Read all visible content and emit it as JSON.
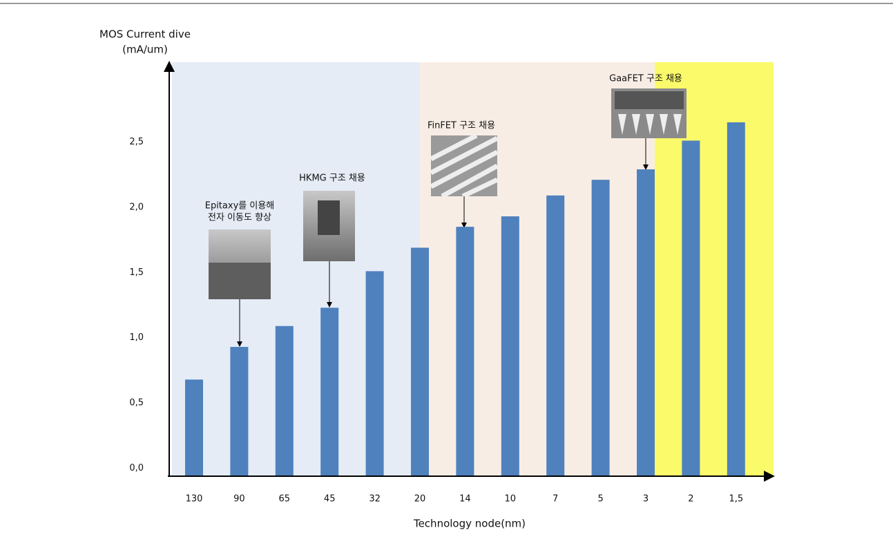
{
  "chart_data": {
    "type": "bar",
    "y_label_lines": [
      "MOS Current dive",
      "(mA/um)"
    ],
    "x_label": "Technology node(nm)",
    "categories": [
      "130",
      "90",
      "65",
      "45",
      "32",
      "20",
      "14",
      "10",
      "7",
      "5",
      "3",
      "2",
      "1,5"
    ],
    "values": [
      0.68,
      0.93,
      1.09,
      1.23,
      1.51,
      1.69,
      1.85,
      1.93,
      2.09,
      2.21,
      2.29,
      2.51,
      2.65
    ],
    "color": "#4f81bd",
    "ylim": [
      -0.06,
      3.1
    ],
    "yticks": [
      {
        "value": 0,
        "label": "0,0"
      },
      {
        "value": 0.5,
        "label": "0,5"
      },
      {
        "value": 1,
        "label": "1,0"
      },
      {
        "value": 1.5,
        "label": "1,5"
      },
      {
        "value": 2,
        "label": "2,0"
      },
      {
        "value": 2.5,
        "label": "2,5"
      }
    ],
    "annotations": [
      {
        "lines": [
          "Epitaxy를 이용해",
          "전자 이동도 향상"
        ]
      },
      {
        "lines": [
          "HKMG 구조 채용"
        ]
      },
      {
        "lines": [
          "FinFET 구조 채용"
        ]
      },
      {
        "lines": [
          "GaaFET 구조 채용"
        ]
      }
    ]
  }
}
